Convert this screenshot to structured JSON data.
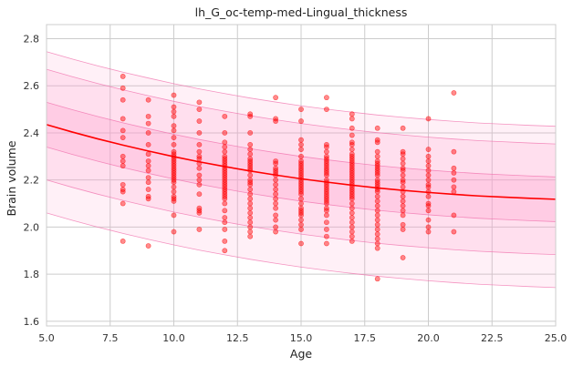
{
  "chart_data": {
    "type": "scatter",
    "title": "lh_G_oc-temp-med-Lingual_thickness",
    "xlabel": "Age",
    "ylabel": "Brain volume",
    "xlim": [
      5.0,
      25.0
    ],
    "ylim": [
      1.58,
      2.86
    ],
    "x_ticks": [
      5.0,
      7.5,
      10.0,
      12.5,
      15.0,
      17.5,
      20.0,
      22.5,
      25.0
    ],
    "x_tick_labels": [
      "5.0",
      "7.5",
      "10.0",
      "12.5",
      "15.0",
      "17.5",
      "20.0",
      "22.5",
      "25.0"
    ],
    "y_ticks": [
      1.6,
      1.8,
      2.0,
      2.2,
      2.4,
      2.6,
      2.8
    ],
    "y_tick_labels": [
      "1.6",
      "1.8",
      "2.0",
      "2.2",
      "2.4",
      "2.6",
      "2.8"
    ],
    "grid": true,
    "colors": {
      "points": "#ff0000",
      "fit_line": "#ff0000",
      "band_outer": "#ff99cc",
      "band_outer_edge": "#f06aa8",
      "grid": "#cccccc"
    },
    "fit_curve": {
      "x": [
        5,
        6,
        7,
        8,
        9,
        10,
        11,
        12,
        13,
        14,
        15,
        16,
        17,
        18,
        19,
        20,
        21,
        22,
        23,
        24,
        25
      ],
      "y": [
        2.435,
        2.404,
        2.375,
        2.348,
        2.323,
        2.299,
        2.277,
        2.257,
        2.238,
        2.221,
        2.205,
        2.191,
        2.178,
        2.166,
        2.156,
        2.147,
        2.139,
        2.132,
        2.127,
        2.122,
        2.118
      ]
    },
    "bands": [
      {
        "lower_offset": -0.095,
        "upper_offset": 0.095,
        "opacity": 0.28
      },
      {
        "lower_offset": -0.235,
        "upper_offset": 0.235,
        "opacity": 0.2
      },
      {
        "lower_offset": -0.375,
        "upper_offset": 0.31,
        "opacity": 0.15
      }
    ],
    "points": [
      [
        8,
        2.64
      ],
      [
        8,
        2.59
      ],
      [
        8,
        2.54
      ],
      [
        8,
        2.46
      ],
      [
        8,
        2.41
      ],
      [
        8,
        2.38
      ],
      [
        8,
        2.3
      ],
      [
        8,
        2.28
      ],
      [
        8,
        2.26
      ],
      [
        8,
        2.18
      ],
      [
        8,
        2.16
      ],
      [
        8,
        2.15
      ],
      [
        8,
        2.1
      ],
      [
        8,
        1.94
      ],
      [
        9,
        2.54
      ],
      [
        9,
        2.47
      ],
      [
        9,
        2.44
      ],
      [
        9,
        2.4
      ],
      [
        9,
        2.35
      ],
      [
        9,
        2.31
      ],
      [
        9,
        2.28
      ],
      [
        9,
        2.26
      ],
      [
        9,
        2.24
      ],
      [
        9,
        2.21
      ],
      [
        9,
        2.19
      ],
      [
        9,
        2.16
      ],
      [
        9,
        2.13
      ],
      [
        9,
        2.12
      ],
      [
        9,
        1.92
      ],
      [
        10,
        2.56
      ],
      [
        10,
        2.51
      ],
      [
        10,
        2.49
      ],
      [
        10,
        2.47
      ],
      [
        10,
        2.43
      ],
      [
        10,
        2.41
      ],
      [
        10,
        2.38
      ],
      [
        10,
        2.35
      ],
      [
        10,
        2.32
      ],
      [
        10,
        2.31
      ],
      [
        10,
        2.3
      ],
      [
        10,
        2.29
      ],
      [
        10,
        2.28
      ],
      [
        10,
        2.27
      ],
      [
        10,
        2.26
      ],
      [
        10,
        2.25
      ],
      [
        10,
        2.24
      ],
      [
        10,
        2.23
      ],
      [
        10,
        2.22
      ],
      [
        10,
        2.21
      ],
      [
        10,
        2.2
      ],
      [
        10,
        2.19
      ],
      [
        10,
        2.17
      ],
      [
        10,
        2.15
      ],
      [
        10,
        2.13
      ],
      [
        10,
        2.12
      ],
      [
        10,
        2.11
      ],
      [
        10,
        2.05
      ],
      [
        10,
        1.98
      ],
      [
        11,
        2.53
      ],
      [
        11,
        2.5
      ],
      [
        11,
        2.45
      ],
      [
        11,
        2.4
      ],
      [
        11,
        2.35
      ],
      [
        11,
        2.32
      ],
      [
        11,
        2.3
      ],
      [
        11,
        2.29
      ],
      [
        11,
        2.27
      ],
      [
        11,
        2.25
      ],
      [
        11,
        2.22
      ],
      [
        11,
        2.2
      ],
      [
        11,
        2.18
      ],
      [
        11,
        2.14
      ],
      [
        11,
        2.08
      ],
      [
        11,
        2.07
      ],
      [
        11,
        2.06
      ],
      [
        11,
        1.99
      ],
      [
        12,
        2.47
      ],
      [
        12,
        2.4
      ],
      [
        12,
        2.36
      ],
      [
        12,
        2.34
      ],
      [
        12,
        2.32
      ],
      [
        12,
        2.3
      ],
      [
        12,
        2.29
      ],
      [
        12,
        2.28
      ],
      [
        12,
        2.27
      ],
      [
        12,
        2.26
      ],
      [
        12,
        2.25
      ],
      [
        12,
        2.24
      ],
      [
        12,
        2.23
      ],
      [
        12,
        2.22
      ],
      [
        12,
        2.21
      ],
      [
        12,
        2.2
      ],
      [
        12,
        2.19
      ],
      [
        12,
        2.18
      ],
      [
        12,
        2.17
      ],
      [
        12,
        2.16
      ],
      [
        12,
        2.15
      ],
      [
        12,
        2.14
      ],
      [
        12,
        2.13
      ],
      [
        12,
        2.12
      ],
      [
        12,
        2.1
      ],
      [
        12,
        2.07
      ],
      [
        12,
        2.04
      ],
      [
        12,
        2.02
      ],
      [
        12,
        1.99
      ],
      [
        12,
        1.94
      ],
      [
        12,
        1.9
      ],
      [
        13,
        2.48
      ],
      [
        13,
        2.47
      ],
      [
        13,
        2.4
      ],
      [
        13,
        2.35
      ],
      [
        13,
        2.33
      ],
      [
        13,
        2.31
      ],
      [
        13,
        2.29
      ],
      [
        13,
        2.28
      ],
      [
        13,
        2.27
      ],
      [
        13,
        2.26
      ],
      [
        13,
        2.25
      ],
      [
        13,
        2.24
      ],
      [
        13,
        2.22
      ],
      [
        13,
        2.2
      ],
      [
        13,
        2.19
      ],
      [
        13,
        2.18
      ],
      [
        13,
        2.16
      ],
      [
        13,
        2.14
      ],
      [
        13,
        2.12
      ],
      [
        13,
        2.1
      ],
      [
        13,
        2.08
      ],
      [
        13,
        2.06
      ],
      [
        13,
        2.04
      ],
      [
        13,
        2.02
      ],
      [
        13,
        2.0
      ],
      [
        13,
        1.98
      ],
      [
        13,
        1.96
      ],
      [
        14,
        2.55
      ],
      [
        14,
        2.46
      ],
      [
        14,
        2.45
      ],
      [
        14,
        2.28
      ],
      [
        14,
        2.27
      ],
      [
        14,
        2.25
      ],
      [
        14,
        2.24
      ],
      [
        14,
        2.23
      ],
      [
        14,
        2.22
      ],
      [
        14,
        2.2
      ],
      [
        14,
        2.18
      ],
      [
        14,
        2.16
      ],
      [
        14,
        2.14
      ],
      [
        14,
        2.12
      ],
      [
        14,
        2.1
      ],
      [
        14,
        2.08
      ],
      [
        14,
        2.05
      ],
      [
        14,
        2.03
      ],
      [
        14,
        2.0
      ],
      [
        14,
        1.98
      ],
      [
        15,
        2.5
      ],
      [
        15,
        2.45
      ],
      [
        15,
        2.37
      ],
      [
        15,
        2.35
      ],
      [
        15,
        2.33
      ],
      [
        15,
        2.3
      ],
      [
        15,
        2.28
      ],
      [
        15,
        2.27
      ],
      [
        15,
        2.26
      ],
      [
        15,
        2.25
      ],
      [
        15,
        2.24
      ],
      [
        15,
        2.23
      ],
      [
        15,
        2.22
      ],
      [
        15,
        2.21
      ],
      [
        15,
        2.2
      ],
      [
        15,
        2.19
      ],
      [
        15,
        2.18
      ],
      [
        15,
        2.17
      ],
      [
        15,
        2.16
      ],
      [
        15,
        2.15
      ],
      [
        15,
        2.14
      ],
      [
        15,
        2.12
      ],
      [
        15,
        2.1
      ],
      [
        15,
        2.08
      ],
      [
        15,
        2.07
      ],
      [
        15,
        2.06
      ],
      [
        15,
        2.05
      ],
      [
        15,
        2.03
      ],
      [
        15,
        2.01
      ],
      [
        15,
        1.99
      ],
      [
        15,
        1.93
      ],
      [
        16,
        2.55
      ],
      [
        16,
        2.5
      ],
      [
        16,
        2.35
      ],
      [
        16,
        2.34
      ],
      [
        16,
        2.32
      ],
      [
        16,
        2.3
      ],
      [
        16,
        2.29
      ],
      [
        16,
        2.28
      ],
      [
        16,
        2.27
      ],
      [
        16,
        2.26
      ],
      [
        16,
        2.25
      ],
      [
        16,
        2.24
      ],
      [
        16,
        2.23
      ],
      [
        16,
        2.22
      ],
      [
        16,
        2.2
      ],
      [
        16,
        2.19
      ],
      [
        16,
        2.18
      ],
      [
        16,
        2.17
      ],
      [
        16,
        2.16
      ],
      [
        16,
        2.15
      ],
      [
        16,
        2.14
      ],
      [
        16,
        2.13
      ],
      [
        16,
        2.12
      ],
      [
        16,
        2.11
      ],
      [
        16,
        2.1
      ],
      [
        16,
        2.08
      ],
      [
        16,
        2.07
      ],
      [
        16,
        2.05
      ],
      [
        16,
        2.02
      ],
      [
        16,
        1.99
      ],
      [
        16,
        1.96
      ],
      [
        16,
        1.93
      ],
      [
        17,
        2.48
      ],
      [
        17,
        2.46
      ],
      [
        17,
        2.42
      ],
      [
        17,
        2.39
      ],
      [
        17,
        2.36
      ],
      [
        17,
        2.35
      ],
      [
        17,
        2.33
      ],
      [
        17,
        2.31
      ],
      [
        17,
        2.3
      ],
      [
        17,
        2.29
      ],
      [
        17,
        2.28
      ],
      [
        17,
        2.27
      ],
      [
        17,
        2.26
      ],
      [
        17,
        2.25
      ],
      [
        17,
        2.24
      ],
      [
        17,
        2.23
      ],
      [
        17,
        2.22
      ],
      [
        17,
        2.21
      ],
      [
        17,
        2.2
      ],
      [
        17,
        2.19
      ],
      [
        17,
        2.18
      ],
      [
        17,
        2.17
      ],
      [
        17,
        2.16
      ],
      [
        17,
        2.15
      ],
      [
        17,
        2.14
      ],
      [
        17,
        2.13
      ],
      [
        17,
        2.12
      ],
      [
        17,
        2.1
      ],
      [
        17,
        2.08
      ],
      [
        17,
        2.06
      ],
      [
        17,
        2.04
      ],
      [
        17,
        2.02
      ],
      [
        17,
        2.0
      ],
      [
        17,
        1.98
      ],
      [
        17,
        1.96
      ],
      [
        17,
        1.94
      ],
      [
        18,
        2.42
      ],
      [
        18,
        2.37
      ],
      [
        18,
        2.36
      ],
      [
        18,
        2.32
      ],
      [
        18,
        2.3
      ],
      [
        18,
        2.28
      ],
      [
        18,
        2.27
      ],
      [
        18,
        2.26
      ],
      [
        18,
        2.25
      ],
      [
        18,
        2.24
      ],
      [
        18,
        2.23
      ],
      [
        18,
        2.22
      ],
      [
        18,
        2.2
      ],
      [
        18,
        2.19
      ],
      [
        18,
        2.18
      ],
      [
        18,
        2.17
      ],
      [
        18,
        2.16
      ],
      [
        18,
        2.15
      ],
      [
        18,
        2.13
      ],
      [
        18,
        2.11
      ],
      [
        18,
        2.09
      ],
      [
        18,
        2.07
      ],
      [
        18,
        2.05
      ],
      [
        18,
        2.03
      ],
      [
        18,
        2.01
      ],
      [
        18,
        1.99
      ],
      [
        18,
        1.97
      ],
      [
        18,
        1.95
      ],
      [
        18,
        1.93
      ],
      [
        18,
        1.91
      ],
      [
        18,
        1.78
      ],
      [
        19,
        2.42
      ],
      [
        19,
        2.32
      ],
      [
        19,
        2.31
      ],
      [
        19,
        2.29
      ],
      [
        19,
        2.27
      ],
      [
        19,
        2.25
      ],
      [
        19,
        2.24
      ],
      [
        19,
        2.22
      ],
      [
        19,
        2.2
      ],
      [
        19,
        2.19
      ],
      [
        19,
        2.17
      ],
      [
        19,
        2.15
      ],
      [
        19,
        2.13
      ],
      [
        19,
        2.11
      ],
      [
        19,
        2.09
      ],
      [
        19,
        2.07
      ],
      [
        19,
        2.05
      ],
      [
        19,
        2.01
      ],
      [
        19,
        1.99
      ],
      [
        19,
        1.87
      ],
      [
        20,
        2.46
      ],
      [
        20,
        2.33
      ],
      [
        20,
        2.3
      ],
      [
        20,
        2.28
      ],
      [
        20,
        2.26
      ],
      [
        20,
        2.24
      ],
      [
        20,
        2.22
      ],
      [
        20,
        2.2
      ],
      [
        20,
        2.18
      ],
      [
        20,
        2.17
      ],
      [
        20,
        2.15
      ],
      [
        20,
        2.13
      ],
      [
        20,
        2.1
      ],
      [
        20,
        2.09
      ],
      [
        20,
        2.07
      ],
      [
        20,
        2.03
      ],
      [
        20,
        2.0
      ],
      [
        20,
        1.98
      ],
      [
        21,
        2.57
      ],
      [
        21,
        2.32
      ],
      [
        21,
        2.25
      ],
      [
        21,
        2.23
      ],
      [
        21,
        2.2
      ],
      [
        21,
        2.17
      ],
      [
        21,
        2.15
      ],
      [
        21,
        2.05
      ],
      [
        21,
        1.98
      ]
    ]
  }
}
